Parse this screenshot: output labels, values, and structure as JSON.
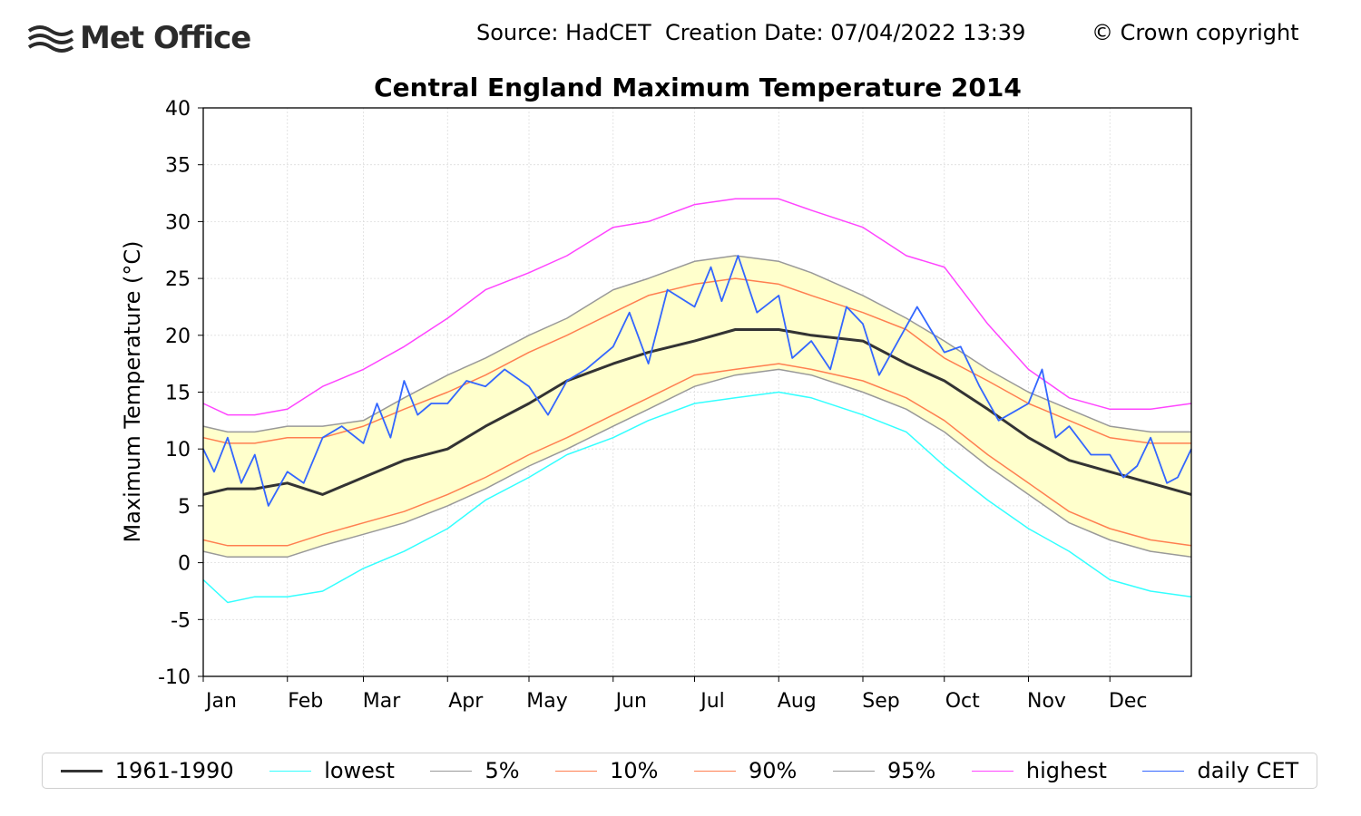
{
  "header": {
    "logo_text": "Met Office",
    "source": "Source: HadCET  Creation Date: 07/04/2022 13:39",
    "copyright": "© Crown copyright"
  },
  "chart_data": {
    "type": "line",
    "title": "Central England Maximum Temperature 2014",
    "xlabel": "",
    "ylabel": "Maximum Temperature (°C)",
    "ylim": [
      -10,
      40
    ],
    "yticks": [
      -10,
      -5,
      0,
      5,
      10,
      15,
      20,
      25,
      30,
      35,
      40
    ],
    "x_domain_days": [
      1,
      365
    ],
    "month_labels": [
      "Jan",
      "Feb",
      "Mar",
      "Apr",
      "May",
      "Jun",
      "Jul",
      "Aug",
      "Sep",
      "Oct",
      "Nov",
      "Dec"
    ],
    "month_start_days": [
      1,
      32,
      60,
      91,
      121,
      152,
      182,
      213,
      244,
      274,
      305,
      335
    ],
    "grid": true,
    "band_fill": "#ffffcc",
    "series": [
      {
        "name": "lowest",
        "color": "#33ffff",
        "width": 1.5,
        "x": [
          1,
          10,
          20,
          32,
          45,
          60,
          75,
          91,
          105,
          121,
          135,
          152,
          165,
          182,
          197,
          213,
          225,
          244,
          260,
          274,
          290,
          305,
          320,
          335,
          350,
          365
        ],
        "values": [
          -1.5,
          -3.5,
          -3,
          -3,
          -2.5,
          -0.5,
          1,
          3,
          5.5,
          7.5,
          9.5,
          11,
          12.5,
          14,
          14.5,
          15,
          14.5,
          13,
          11.5,
          8.5,
          5.5,
          3,
          1,
          -1.5,
          -2.5,
          -3
        ]
      },
      {
        "name": "5%",
        "color": "#999999",
        "width": 1.5,
        "x": [
          1,
          10,
          20,
          32,
          45,
          60,
          75,
          91,
          105,
          121,
          135,
          152,
          165,
          182,
          197,
          213,
          225,
          244,
          260,
          274,
          290,
          305,
          320,
          335,
          350,
          365
        ],
        "values": [
          1,
          0.5,
          0.5,
          0.5,
          1.5,
          2.5,
          3.5,
          5,
          6.5,
          8.5,
          10,
          12,
          13.5,
          15.5,
          16.5,
          17,
          16.5,
          15,
          13.5,
          11.5,
          8.5,
          6,
          3.5,
          2,
          1,
          0.5
        ]
      },
      {
        "name": "10%",
        "color": "#ff7f50",
        "width": 1.5,
        "x": [
          1,
          10,
          20,
          32,
          45,
          60,
          75,
          91,
          105,
          121,
          135,
          152,
          165,
          182,
          197,
          213,
          225,
          244,
          260,
          274,
          290,
          305,
          320,
          335,
          350,
          365
        ],
        "values": [
          2,
          1.5,
          1.5,
          1.5,
          2.5,
          3.5,
          4.5,
          6,
          7.5,
          9.5,
          11,
          13,
          14.5,
          16.5,
          17,
          17.5,
          17,
          16,
          14.5,
          12.5,
          9.5,
          7,
          4.5,
          3,
          2,
          1.5
        ]
      },
      {
        "name": "90%",
        "color": "#ff7f50",
        "width": 1.5,
        "x": [
          1,
          10,
          20,
          32,
          45,
          60,
          75,
          91,
          105,
          121,
          135,
          152,
          165,
          182,
          197,
          213,
          225,
          244,
          260,
          274,
          290,
          305,
          320,
          335,
          350,
          365
        ],
        "values": [
          11,
          10.5,
          10.5,
          11,
          11,
          12,
          13.5,
          15,
          16.5,
          18.5,
          20,
          22,
          23.5,
          24.5,
          25,
          24.5,
          23.5,
          22,
          20.5,
          18,
          16,
          14,
          12.5,
          11,
          10.5,
          10.5
        ]
      },
      {
        "name": "95%",
        "color": "#999999",
        "width": 1.5,
        "x": [
          1,
          10,
          20,
          32,
          45,
          60,
          75,
          91,
          105,
          121,
          135,
          152,
          165,
          182,
          197,
          213,
          225,
          244,
          260,
          274,
          290,
          305,
          320,
          335,
          350,
          365
        ],
        "values": [
          12,
          11.5,
          11.5,
          12,
          12,
          12.5,
          14.5,
          16.5,
          18,
          20,
          21.5,
          24,
          25,
          26.5,
          27,
          26.5,
          25.5,
          23.5,
          21.5,
          19.5,
          17,
          15,
          13.5,
          12,
          11.5,
          11.5
        ]
      },
      {
        "name": "highest",
        "color": "#ff44ff",
        "width": 1.5,
        "x": [
          1,
          10,
          20,
          32,
          45,
          60,
          75,
          91,
          105,
          121,
          135,
          152,
          165,
          182,
          197,
          213,
          225,
          244,
          260,
          274,
          290,
          305,
          320,
          335,
          350,
          365
        ],
        "values": [
          14,
          13,
          13,
          13.5,
          15.5,
          17,
          19,
          21.5,
          24,
          25.5,
          27,
          29.5,
          30,
          31.5,
          32,
          32,
          31,
          29.5,
          27,
          26,
          21,
          17,
          14.5,
          13.5,
          13.5,
          14
        ]
      },
      {
        "name": "1961-1990",
        "color": "#333333",
        "width": 3,
        "x": [
          1,
          10,
          20,
          32,
          45,
          60,
          75,
          91,
          105,
          121,
          135,
          152,
          165,
          182,
          197,
          213,
          225,
          244,
          260,
          274,
          290,
          305,
          320,
          335,
          350,
          365
        ],
        "values": [
          6,
          6.5,
          6.5,
          7,
          6,
          7.5,
          9,
          10,
          12,
          14,
          16,
          17.5,
          18.5,
          19.5,
          20.5,
          20.5,
          20,
          19.5,
          17.5,
          16,
          13.5,
          11,
          9,
          8,
          7,
          6
        ]
      },
      {
        "name": "daily CET",
        "color": "#3366ff",
        "width": 1.8,
        "x": [
          1,
          5,
          10,
          15,
          20,
          25,
          32,
          38,
          45,
          52,
          60,
          65,
          70,
          75,
          80,
          85,
          91,
          98,
          105,
          112,
          121,
          128,
          135,
          142,
          152,
          158,
          165,
          172,
          182,
          188,
          192,
          198,
          205,
          213,
          218,
          225,
          232,
          238,
          244,
          250,
          257,
          264,
          274,
          280,
          287,
          294,
          305,
          310,
          315,
          320,
          328,
          335,
          340,
          345,
          350,
          356,
          360,
          365
        ],
        "values": [
          10,
          8,
          11,
          7,
          9.5,
          5,
          8,
          7,
          11,
          12,
          10.5,
          14,
          11,
          16,
          13,
          14,
          14,
          16,
          15.5,
          17,
          15.5,
          13,
          16,
          17,
          19,
          22,
          17.5,
          24,
          22.5,
          26,
          23,
          27,
          22,
          23.5,
          18,
          19.5,
          17,
          22.5,
          21,
          16.5,
          19.5,
          22.5,
          18.5,
          19,
          15.5,
          12.5,
          14,
          17,
          11,
          12,
          9.5,
          9.5,
          7.5,
          8.5,
          11,
          7,
          7.5,
          10
        ]
      }
    ]
  },
  "legend": [
    {
      "label": "1961-1990",
      "color": "#333333",
      "width": 3
    },
    {
      "label": "lowest",
      "color": "#33ffff",
      "width": 1.5
    },
    {
      "label": "5%",
      "color": "#999999",
      "width": 1.5
    },
    {
      "label": "10%",
      "color": "#ff7f50",
      "width": 1.5
    },
    {
      "label": "90%",
      "color": "#ff7f50",
      "width": 1.5
    },
    {
      "label": "95%",
      "color": "#999999",
      "width": 1.5
    },
    {
      "label": "highest",
      "color": "#ff44ff",
      "width": 1.5
    },
    {
      "label": "daily CET",
      "color": "#3366ff",
      "width": 1.5
    }
  ]
}
